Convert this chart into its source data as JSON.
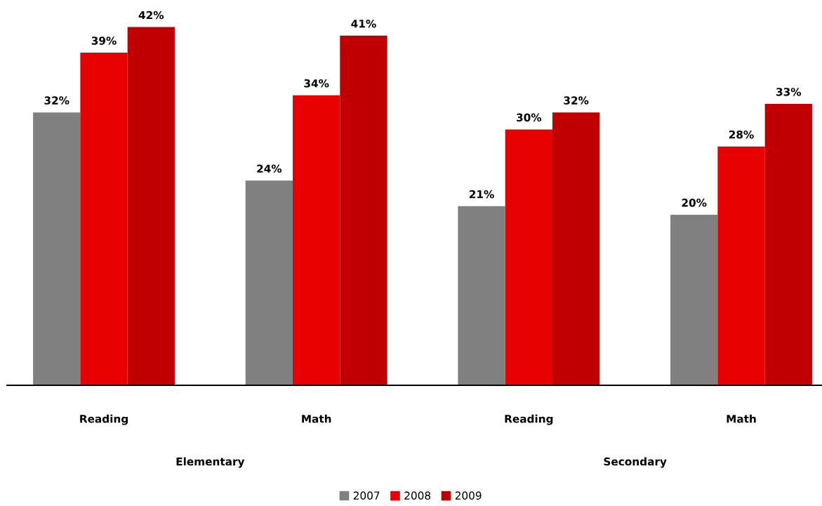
{
  "chart_data": {
    "type": "bar",
    "categories": [
      "Reading",
      "Math",
      "Reading",
      "Math"
    ],
    "series": [
      {
        "name": "2007",
        "color": "#808080",
        "values": [
          32,
          24,
          21,
          20
        ],
        "value_labels": [
          "32%",
          "24%",
          "21%",
          "20%"
        ]
      },
      {
        "name": "2008",
        "color": "#e60000",
        "values": [
          39,
          34,
          30,
          28
        ],
        "value_labels": [
          "39%",
          "34%",
          "30%",
          "28%"
        ]
      },
      {
        "name": "2009",
        "color": "#c00000",
        "values": [
          42,
          41,
          32,
          33
        ],
        "value_labels": [
          "42%",
          "41%",
          "32%",
          "33%"
        ]
      }
    ],
    "annotations": [
      "Elementary",
      "Secondary"
    ],
    "legend": "bottom"
  }
}
